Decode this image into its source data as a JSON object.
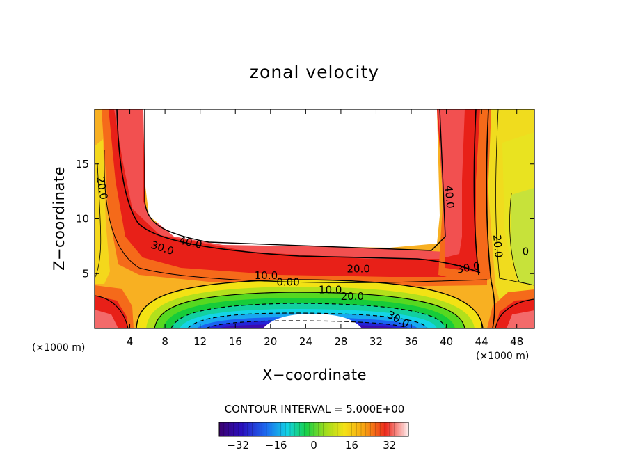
{
  "chart_data": {
    "type": "contour",
    "title": "zonal velocity",
    "xlabel": "X−coordinate",
    "ylabel": "Z−coordinate",
    "x_units": "(×1000 m)",
    "x_units_right": "(×1000 m)",
    "xlim": [
      0,
      50
    ],
    "ylim": [
      0,
      20
    ],
    "x_ticks": [
      4,
      8,
      12,
      16,
      20,
      24,
      28,
      32,
      36,
      40,
      44,
      48
    ],
    "x_tick_labels": [
      "4",
      "8",
      "12",
      "16",
      "20",
      "24",
      "28",
      "32",
      "36",
      "40",
      "44",
      "48"
    ],
    "y_ticks": [
      5,
      10,
      15
    ],
    "y_tick_labels": [
      "5",
      "10",
      "15"
    ],
    "contour_interval_text": "CONTOUR INTERVAL = 5.000E+00",
    "colorbar": {
      "min": -40,
      "max": 40,
      "ticks": [
        -32,
        -16,
        0,
        16,
        32
      ],
      "tick_labels": [
        "−32",
        "−16",
        "0",
        "16",
        "32"
      ]
    },
    "contour_labels": [
      {
        "text": "20.0",
        "x": 0.8,
        "z": 12.8,
        "angle": 80
      },
      {
        "text": "40.0",
        "x": 10.9,
        "z": 7.8,
        "angle": 12
      },
      {
        "text": "30.0",
        "x": 7.7,
        "z": 7.3,
        "angle": 18
      },
      {
        "text": "10.0",
        "x": 19.5,
        "z": 4.8,
        "angle": 0
      },
      {
        "text": "0.00",
        "x": 22.0,
        "z": 4.2,
        "angle": 0
      },
      {
        "text": "20.0",
        "x": 30.0,
        "z": 5.4,
        "angle": 0
      },
      {
        "text": "10.0",
        "x": 26.8,
        "z": 3.5,
        "angle": 0
      },
      {
        "text": "20.0",
        "x": 29.3,
        "z": 2.9,
        "angle": 0
      },
      {
        "text": "30.0",
        "x": 34.5,
        "z": 0.8,
        "angle": 28
      },
      {
        "text": "30.0",
        "x": 42.5,
        "z": 5.5,
        "angle": -10
      },
      {
        "text": "40.0",
        "x": 40.3,
        "z": 12.0,
        "angle": 85
      },
      {
        "text": "20.0",
        "x": 45.8,
        "z": 7.5,
        "angle": 85
      },
      {
        "text": "0",
        "x": 49.0,
        "z": 7.0,
        "angle": 0
      }
    ],
    "regions": {
      "obstacle_top": "white block x 5.5–39.5, z 7.0–20 (velocity > 40, unshaded)",
      "min_core": "white blob at x 18–30, z 0–1.5 (velocity < −40)"
    }
  }
}
